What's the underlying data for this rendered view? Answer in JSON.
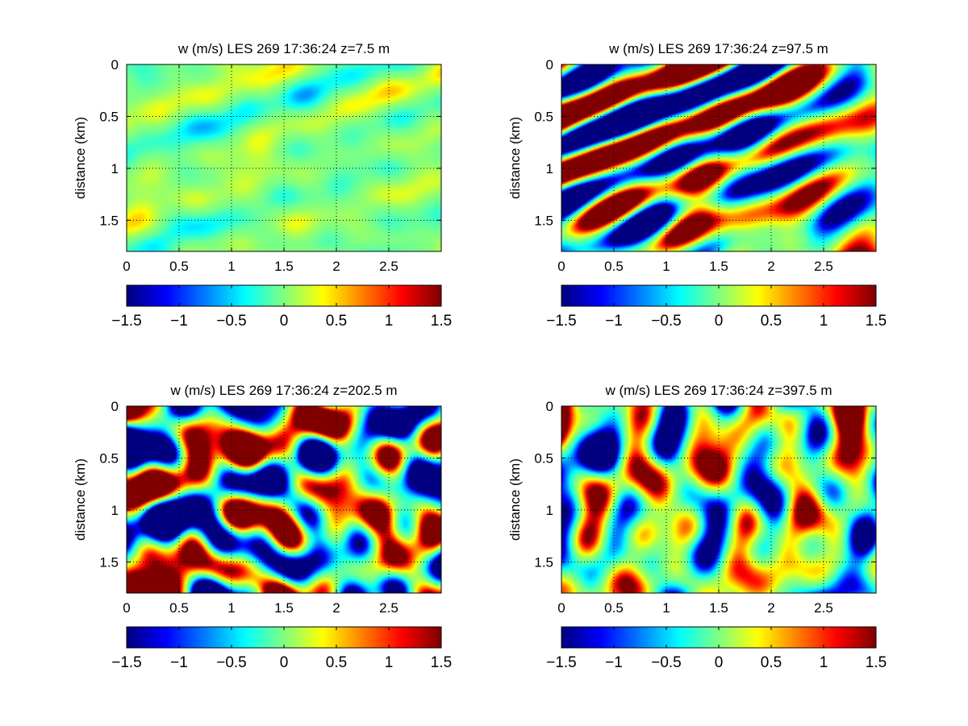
{
  "chart_data": [
    {
      "type": "heatmap",
      "title": "w (m/s) LES 269 17:36:24 z=7.5 m",
      "xlabel": "",
      "ylabel": "distance (km)",
      "xlim": [
        0,
        3
      ],
      "ylim": [
        0,
        1.8
      ],
      "y_reversed": true,
      "xticks": [
        "0",
        "0.5",
        "1",
        "1.5",
        "2",
        "2.5"
      ],
      "yticks": [
        "0",
        "0.5",
        "1",
        "1.5"
      ],
      "clim": [
        -1.5,
        1.5
      ],
      "colorbar_ticks": [
        "−1.5",
        "−1",
        "−0.5",
        "0",
        "0.5",
        "1",
        "1.5"
      ],
      "colormap": "jet",
      "grid": "dotted",
      "field_amplitude": 0.2,
      "field_seed": 11,
      "pattern": "diagonal streaks oriented upper-left to lower-right, weak amplitude"
    },
    {
      "type": "heatmap",
      "title": "w (m/s) LES 269 17:36:24 z=97.5 m",
      "xlabel": "",
      "ylabel": "distance (km)",
      "xlim": [
        0,
        3
      ],
      "ylim": [
        0,
        1.8
      ],
      "y_reversed": true,
      "xticks": [
        "0",
        "0.5",
        "1",
        "1.5",
        "2",
        "2.5"
      ],
      "yticks": [
        "0",
        "0.5",
        "1",
        "1.5"
      ],
      "clim": [
        -1.5,
        1.5
      ],
      "colorbar_ticks": [
        "−1.5",
        "−1",
        "−0.5",
        "0",
        "0.5",
        "1",
        "1.5"
      ],
      "colormap": "jet",
      "grid": "dotted",
      "field_amplitude": 1.6,
      "field_seed": 23,
      "pattern": "strong diagonal updraft bands (red) with downdraft filaments (blue)"
    },
    {
      "type": "heatmap",
      "title": "w (m/s) LES 269 17:36:24 z=202.5 m",
      "xlabel": "",
      "ylabel": "distance (km)",
      "xlim": [
        0,
        3
      ],
      "ylim": [
        0,
        1.8
      ],
      "y_reversed": true,
      "xticks": [
        "0",
        "0.5",
        "1",
        "1.5",
        "2",
        "2.5"
      ],
      "yticks": [
        "0",
        "0.5",
        "1",
        "1.5"
      ],
      "clim": [
        -1.5,
        1.5
      ],
      "colorbar_ticks": [
        "−1.5",
        "−1",
        "−0.5",
        "0",
        "0.5",
        "1",
        "1.5"
      ],
      "colormap": "jet",
      "grid": "dotted",
      "field_amplitude": 1.4,
      "field_seed": 37,
      "pattern": "diagonal updraft bands plus more chaotic eddies"
    },
    {
      "type": "heatmap",
      "title": "w (m/s) LES 269 17:36:24 z=397.5 m",
      "xlabel": "",
      "ylabel": "distance (km)",
      "xlim": [
        0,
        3
      ],
      "ylim": [
        0,
        1.8
      ],
      "y_reversed": true,
      "xticks": [
        "0",
        "0.5",
        "1",
        "1.5",
        "2",
        "2.5"
      ],
      "yticks": [
        "0",
        "0.5",
        "1",
        "1.5"
      ],
      "clim": [
        -1.5,
        1.5
      ],
      "colormap": "jet",
      "colorbar_ticks": [
        "−1.5",
        "−1",
        "−0.5",
        "0",
        "0.5",
        "1",
        "1.5"
      ],
      "grid": "dotted",
      "field_amplitude": 0.9,
      "field_seed": 53,
      "pattern": "broad smooth structures, mostly near zero with moderate extremes"
    }
  ]
}
